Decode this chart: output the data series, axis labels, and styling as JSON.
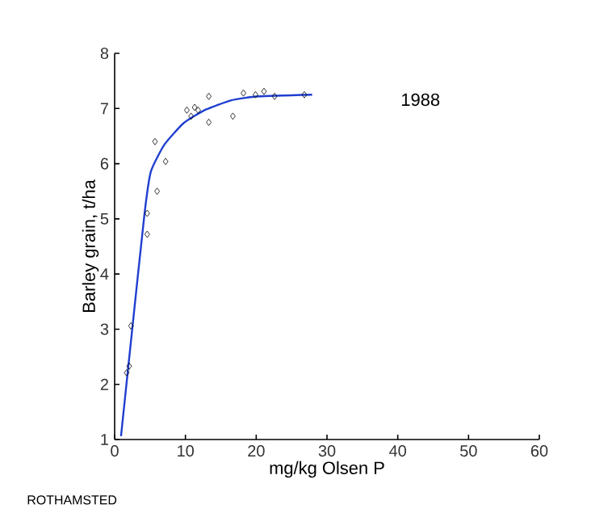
{
  "chart_data": {
    "type": "scatter",
    "xlabel": "mg/kg Olsen P",
    "ylabel": "Barley grain, t/ha",
    "xlim": [
      0,
      60
    ],
    "ylim": [
      1,
      8
    ],
    "xticks": [
      0,
      10,
      20,
      30,
      40,
      50,
      60
    ],
    "yticks": [
      1,
      2,
      3,
      4,
      5,
      6,
      7,
      8
    ],
    "grid": false,
    "annotations": [
      "1988",
      "ROTHAMSTED"
    ],
    "series": [
      {
        "marker": "diamond",
        "color": "#000000",
        "x": [
          1.7,
          2.05,
          2.3,
          4.6,
          4.6,
          5.7,
          6.0,
          7.2,
          10.2,
          10.8,
          11.3,
          11.8,
          13.3,
          13.3,
          16.7,
          18.2,
          19.9,
          21.1,
          22.6,
          26.8
        ],
        "values": [
          2.21,
          2.33,
          3.06,
          5.1,
          4.72,
          6.4,
          5.5,
          6.04,
          6.97,
          6.86,
          7.02,
          6.97,
          7.22,
          6.75,
          6.86,
          7.28,
          7.25,
          7.31,
          7.22,
          7.25
        ]
      },
      {
        "type": "line",
        "marker": "none",
        "line_style": "solid",
        "color": "#1f3fd0",
        "x": [
          0.9,
          2.4,
          4.2,
          5.1,
          7.0,
          9.7,
          12.7,
          16.5,
          20.3,
          27.9
        ],
        "values": [
          1.06,
          2.9,
          5.07,
          5.85,
          6.34,
          6.73,
          6.97,
          7.15,
          7.22,
          7.25
        ]
      }
    ]
  }
}
